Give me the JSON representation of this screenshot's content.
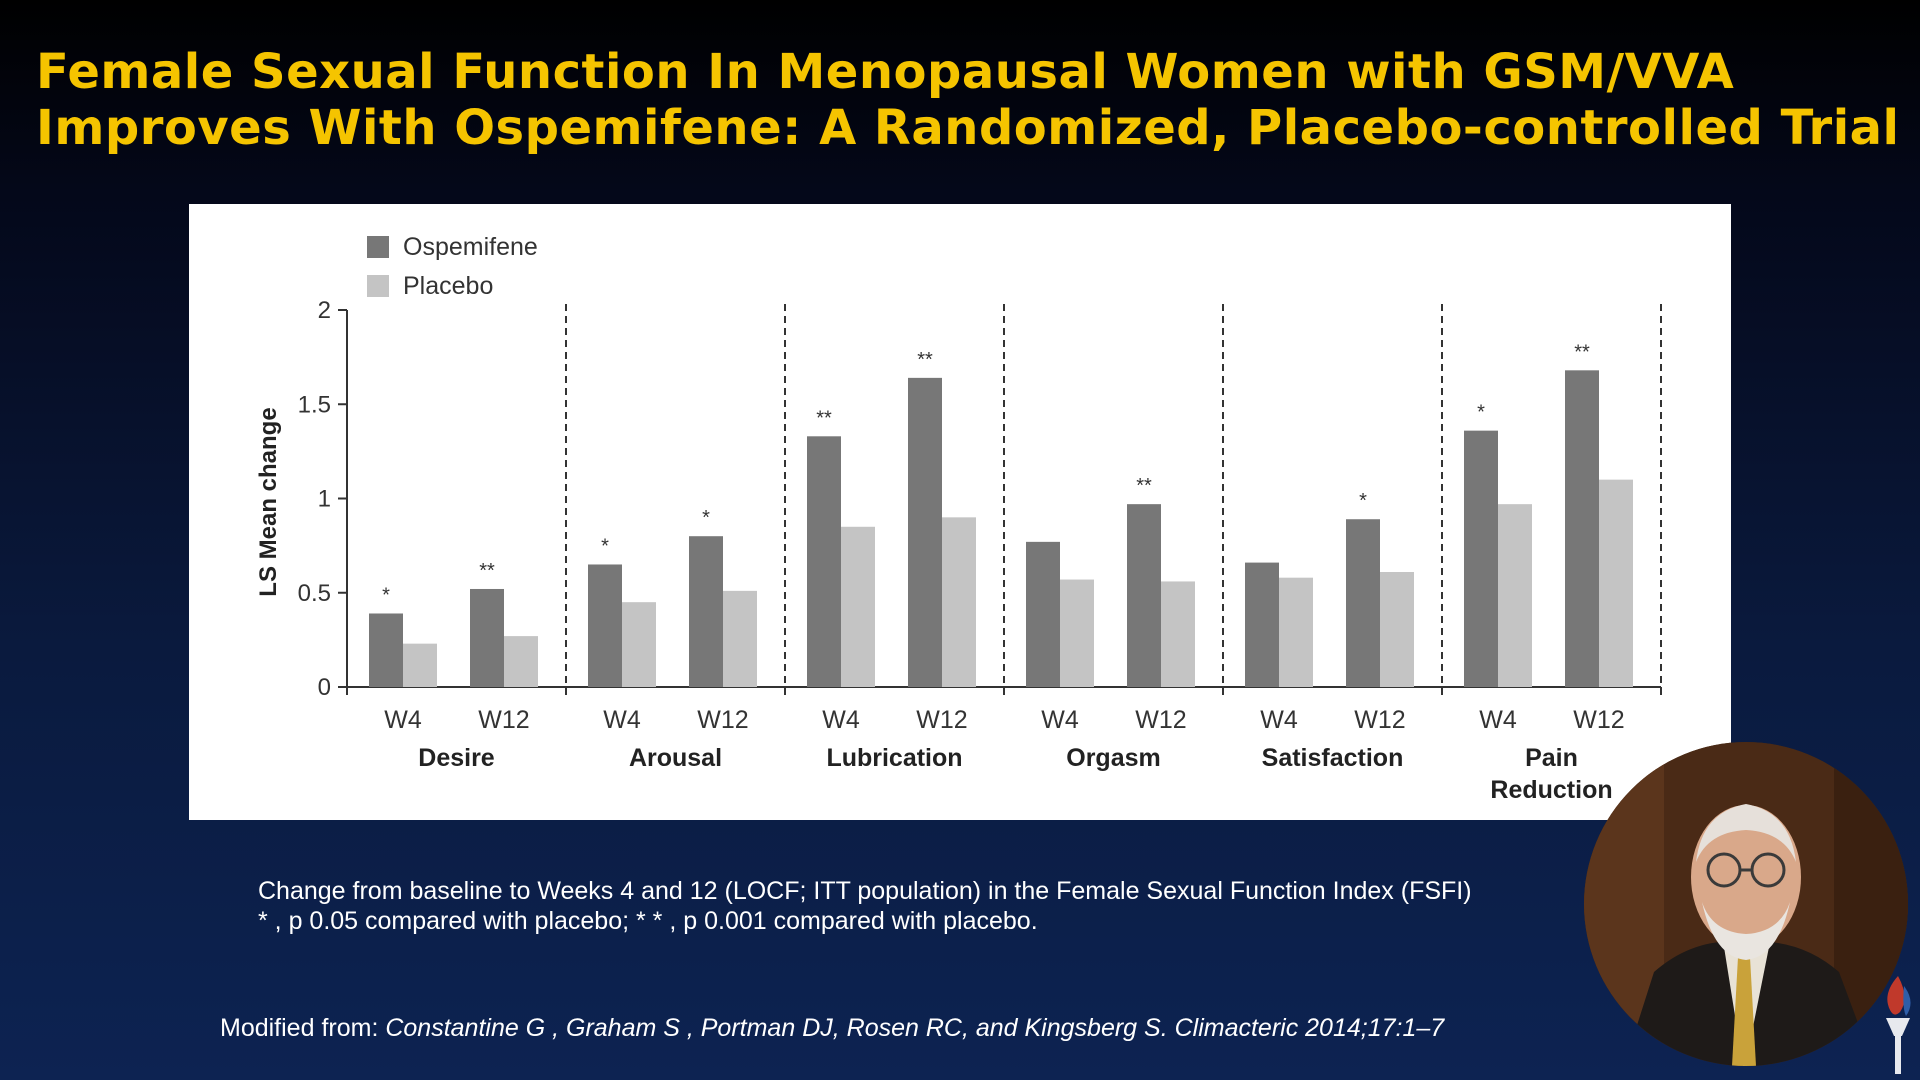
{
  "slide": {
    "title_line1": "Female Sexual Function In Menopausal Women with GSM/VVA",
    "title_line2": "Improves With Ospemifene: A Randomized, Placebo-controlled Trial",
    "caption_line1": "Change from baseline to Weeks 4 and 12 (LOCF; ITT population) in the Female Sexual Function Index (FSFI)",
    "caption_line2": "* , p  0.05 compared with placebo; * * , p  0.001 compared with placebo.",
    "citation_prefix": "Modified from: ",
    "citation_authors": "Constantine G , Graham S , Portman DJ, Rosen RC, and Kingsberg S. Climacteric 2014;17:1–7"
  },
  "colors": {
    "title": "#f5c400",
    "ospemifene": "#777777",
    "placebo": "#c4c4c4"
  },
  "chart_data": {
    "type": "bar",
    "ylabel": "LS Mean change",
    "ylim": [
      0,
      2
    ],
    "yticks": [
      "0",
      "0.5",
      "1",
      "1.5",
      "2"
    ],
    "legend": [
      "Ospemifene",
      "Placebo"
    ],
    "legend_position": "top-left",
    "groups": [
      {
        "label": "Desire",
        "weeks": [
          "W4",
          "W12"
        ],
        "ospemifene": [
          0.39,
          0.52
        ],
        "placebo": [
          0.23,
          0.27
        ],
        "sig": [
          "*",
          "**"
        ]
      },
      {
        "label": "Arousal",
        "weeks": [
          "W4",
          "W12"
        ],
        "ospemifene": [
          0.65,
          0.8
        ],
        "placebo": [
          0.45,
          0.51
        ],
        "sig": [
          "*",
          "*"
        ]
      },
      {
        "label": "Lubrication",
        "weeks": [
          "W4",
          "W12"
        ],
        "ospemifene": [
          1.33,
          1.64
        ],
        "placebo": [
          0.85,
          0.9
        ],
        "sig": [
          "**",
          "**"
        ]
      },
      {
        "label": "Orgasm",
        "weeks": [
          "W4",
          "W12"
        ],
        "ospemifene": [
          0.77,
          0.97
        ],
        "placebo": [
          0.57,
          0.56
        ],
        "sig": [
          "",
          "**"
        ]
      },
      {
        "label": "Satisfaction",
        "weeks": [
          "W4",
          "W12"
        ],
        "ospemifene": [
          0.66,
          0.89
        ],
        "placebo": [
          0.58,
          0.61
        ],
        "sig": [
          "",
          "*"
        ]
      },
      {
        "label": "Pain Reduction",
        "label_lines": [
          "Pain",
          "Reduction"
        ],
        "weeks": [
          "W4",
          "W12"
        ],
        "ospemifene": [
          1.36,
          1.68
        ],
        "placebo": [
          0.97,
          1.1
        ],
        "sig": [
          "*",
          "**"
        ]
      }
    ]
  }
}
